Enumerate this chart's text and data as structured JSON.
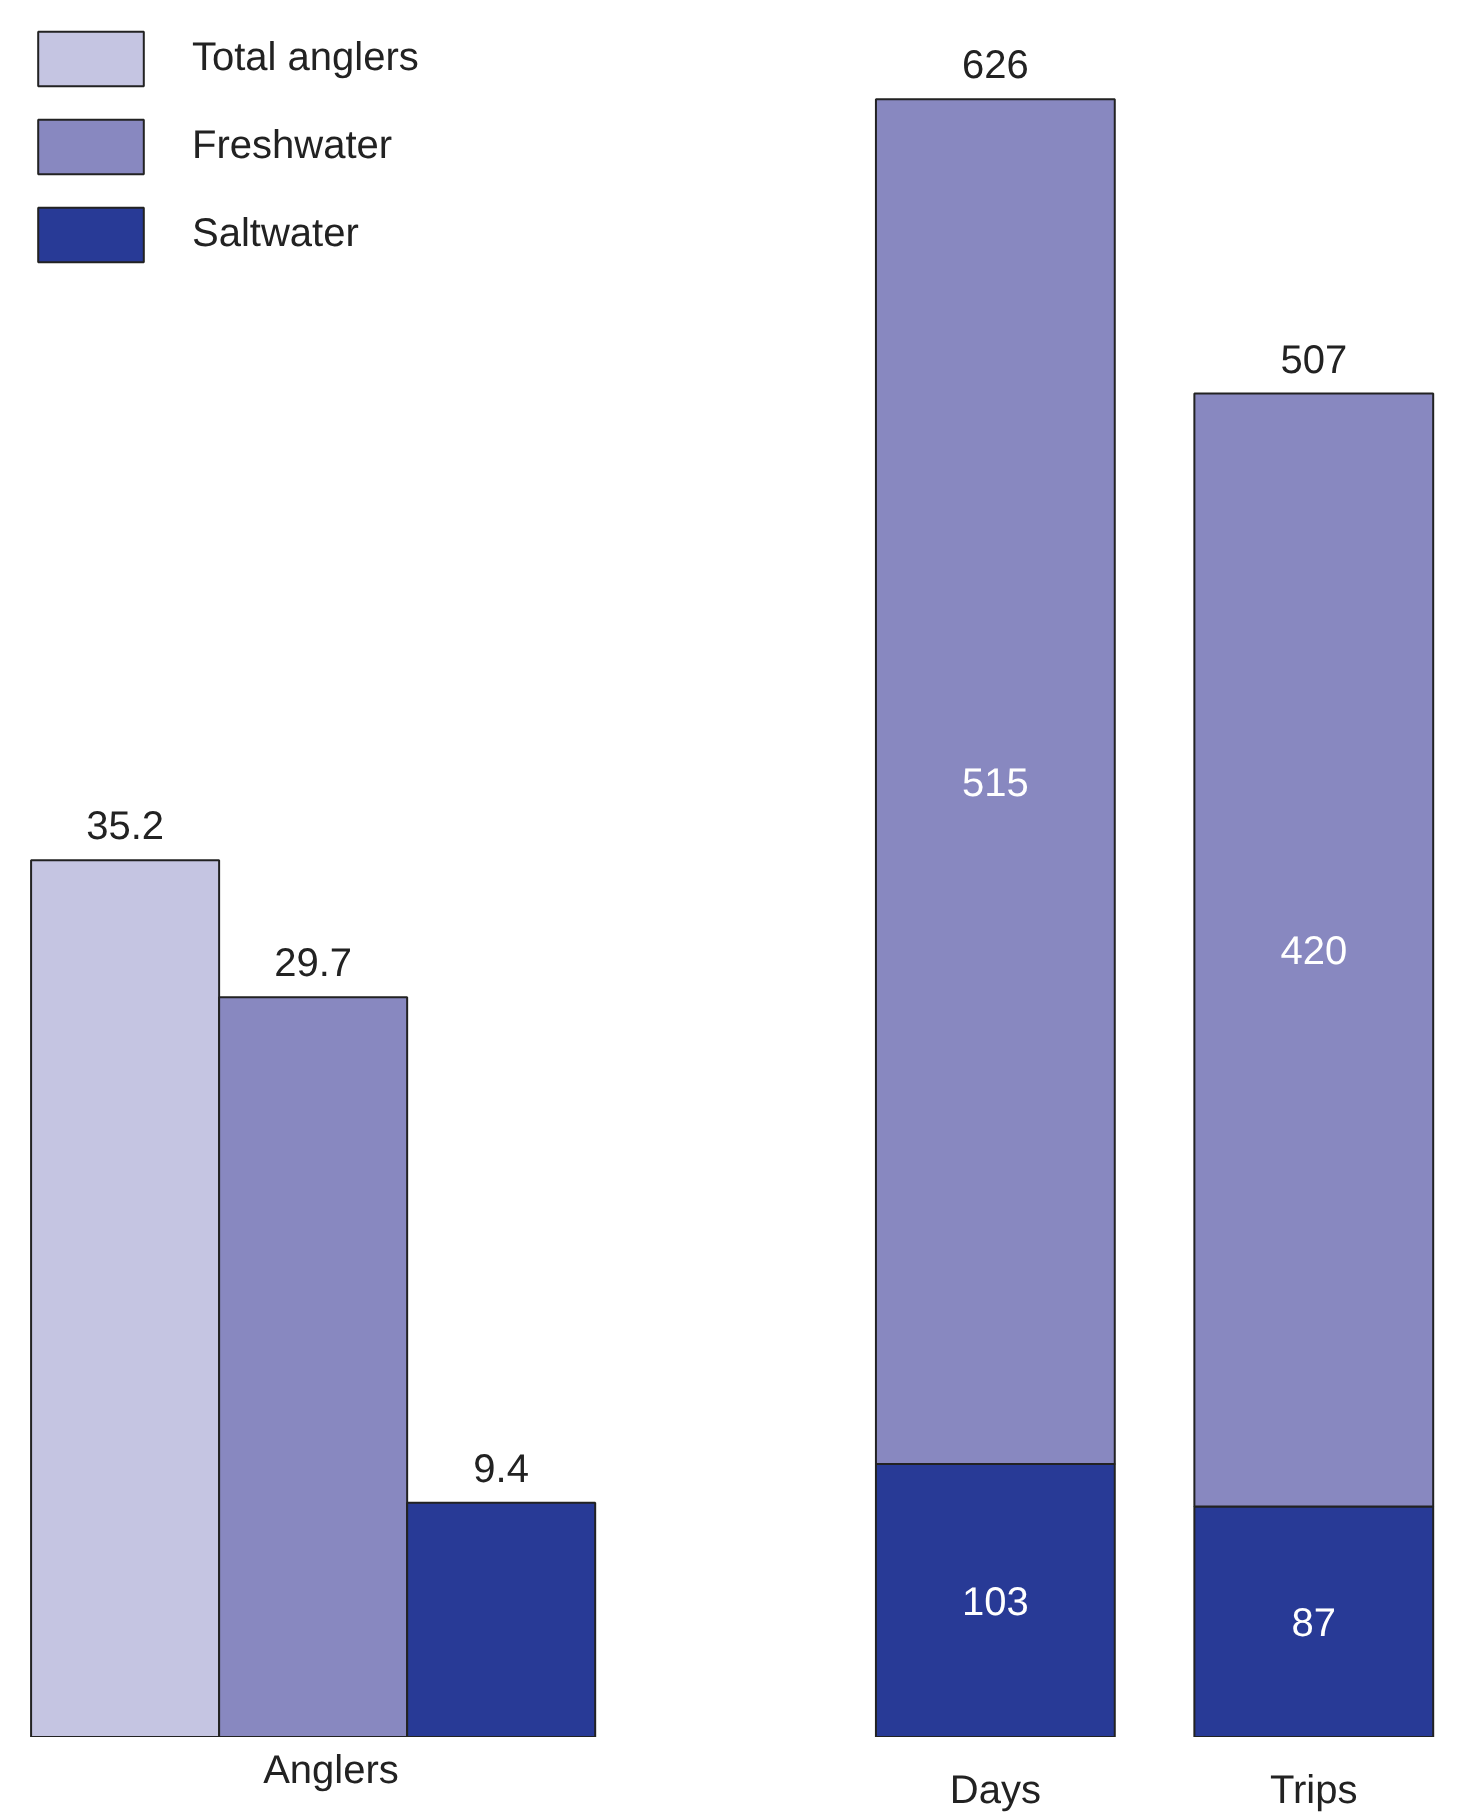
{
  "chart_data": [
    {
      "type": "bar",
      "stacked": true,
      "categories": [
        null,
        null,
        null
      ],
      "xlabel": "Anglers",
      "series": [
        {
          "name": "Total anglers",
          "color": "#c5c5e2",
          "values": [
            35.2,
            null,
            null
          ]
        },
        {
          "name": "Freshwater",
          "color": "#8888c0",
          "values": [
            null,
            29.7,
            null
          ]
        },
        {
          "name": "Saltwater",
          "color": "#283a96",
          "values": [
            null,
            null,
            9.4
          ]
        }
      ],
      "data_labels": true,
      "legend": "top left"
    },
    {
      "type": "bar",
      "stacked": true,
      "categories": [
        "Days",
        "Trips"
      ],
      "series": [
        {
          "color": "#283a96",
          "values": [
            103,
            87
          ]
        },
        {
          "color": "#8888c0",
          "values": [
            515,
            420
          ]
        }
      ],
      "annotations": [
        {
          "text": "626",
          "x": "Days",
          "y": 618
        },
        {
          "text": "507",
          "x": "Trips",
          "y": 507
        }
      ],
      "data_labels": true
    }
  ]
}
